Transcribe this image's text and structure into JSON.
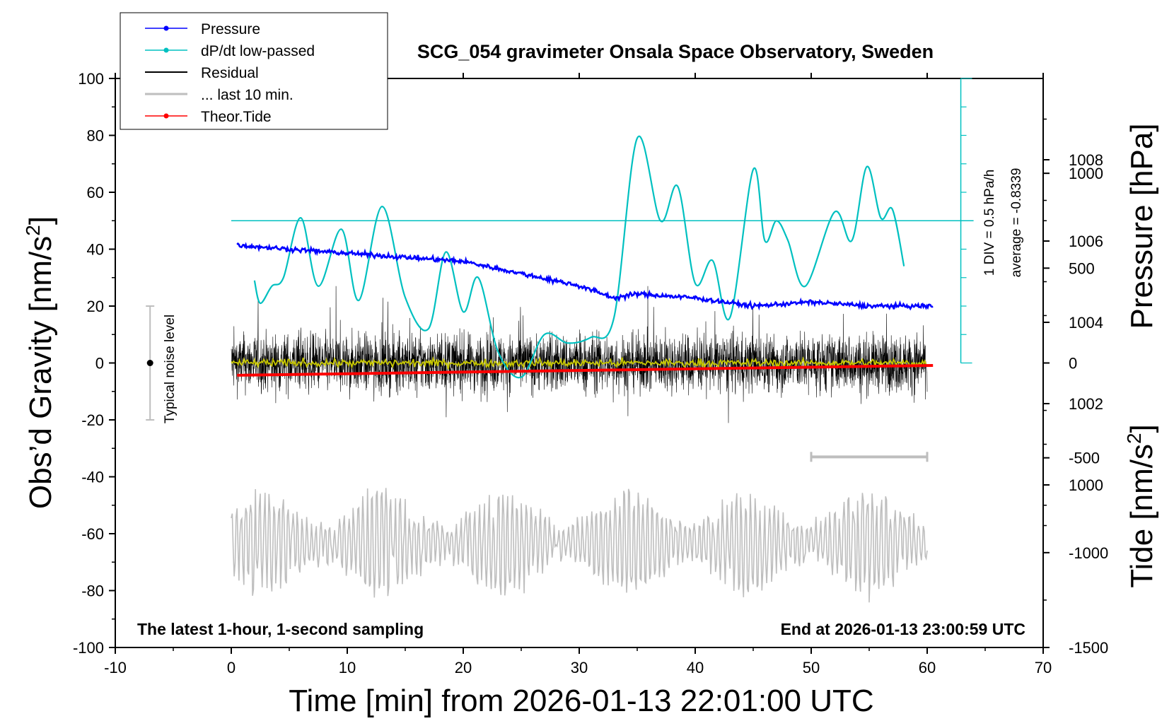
{
  "chart_data": {
    "type": "line",
    "title": "SCG_054 gravimeter Onsala Space Observatory, Sweden",
    "xlabel": "Time [min] from 2026-01-13 22:01:00 UTC",
    "ylabel_left": "Obs’d Gravity [nm/s²]",
    "ylabel_left_main": "Obs’d Gravity [nm/s",
    "ylabel_left_sup": "2",
    "ylabel_left_end": "]",
    "ylabel_pressure": "Pressure [hPa]",
    "ylabel_tide_main": "Tide [nm/s",
    "ylabel_tide_sup": "2",
    "ylabel_tide_end": "]",
    "xlim": [
      -10,
      70
    ],
    "ylim_left": [
      -100,
      100
    ],
    "ylim_pressure": [
      996,
      1010
    ],
    "ylim_tide": [
      -1500,
      1500
    ],
    "x_ticks": [
      -10,
      0,
      10,
      20,
      30,
      40,
      50,
      60,
      70
    ],
    "y_ticks_left": [
      -100,
      -80,
      -60,
      -40,
      -20,
      0,
      20,
      40,
      60,
      80,
      100
    ],
    "pressure_ticks": [
      1000,
      1002,
      1004,
      1006,
      1008
    ],
    "tide_ticks": [
      -1500,
      -1000,
      -500,
      0,
      500,
      1000
    ],
    "legend": {
      "position": "top-left",
      "entries": [
        {
          "label": "Pressure",
          "color": "#0000ff",
          "marker": true
        },
        {
          "label": "dP/dt low-passed",
          "color": "#00c0c0",
          "marker": true
        },
        {
          "label": "Residual",
          "color": "#000000",
          "marker": false
        },
        {
          "label": "... last 10 min.",
          "color": "#bebebe",
          "marker": false
        },
        {
          "label": "Theor.Tide",
          "color": "#ff0000",
          "marker": true
        }
      ]
    },
    "series": [
      {
        "name": "Pressure",
        "axis": "pressure_hPa",
        "color": "#0000ff",
        "x": [
          0.5,
          5,
          10,
          15,
          20,
          25,
          30,
          33,
          35,
          40,
          45,
          50,
          55,
          60.5
        ],
        "y": [
          1005.9,
          1005.8,
          1005.7,
          1005.6,
          1005.5,
          1005.2,
          1004.9,
          1004.6,
          1004.7,
          1004.6,
          1004.4,
          1004.5,
          1004.4,
          1004.4
        ]
      },
      {
        "name": "dP/dt low-passed",
        "axis": "left_nm_s2",
        "color": "#00c0c0",
        "x": [
          2,
          2.5,
          3.5,
          4.5,
          6,
          7.5,
          9.5,
          11,
          13,
          15,
          17,
          18.5,
          20,
          21.3,
          23,
          25,
          27,
          29,
          31,
          33,
          35,
          37,
          38.5,
          40,
          41.5,
          43,
          45,
          46,
          47,
          48,
          49.5,
          52,
          53.5,
          54.8,
          56,
          57,
          58
        ],
        "y": [
          29,
          21,
          27,
          30,
          51,
          27,
          47,
          22,
          55,
          23,
          12,
          39,
          18,
          30,
          4,
          -5,
          10,
          7,
          9,
          16,
          79,
          50,
          62,
          28,
          36,
          16,
          68,
          43,
          50,
          43,
          27,
          53,
          43,
          69,
          51,
          54,
          34
        ]
      },
      {
        "name": "Residual",
        "axis": "left_nm_s2",
        "color": "#000000",
        "xrange": [
          0,
          60
        ],
        "typical_amplitude": 20,
        "min": -30,
        "max": 27
      },
      {
        "name": "Residual (smoothed)",
        "axis": "left_nm_s2",
        "color": "#c8c800",
        "xrange": [
          0,
          60
        ],
        "typical_amplitude": 3
      },
      {
        "name": "... last 10 min.",
        "axis": "left_nm_s2",
        "color": "#bebebe",
        "xrange": [
          0,
          60
        ],
        "center": -63,
        "min": -86,
        "max": -35
      },
      {
        "name": "Theor.Tide",
        "axis": "tide_nm_s2",
        "color": "#ff0000",
        "x": [
          0.5,
          60.5
        ],
        "y": [
          -65,
          -13
        ]
      }
    ],
    "dpdt_reference": {
      "level": 50,
      "xrange": [
        0,
        64
      ],
      "scale_bar_x": 62.9,
      "scale_bar_range": [
        0,
        100
      ],
      "div_label": "1 DIV = 0.5 hPa/h",
      "average_label": "average = -0.8339"
    },
    "noise_bar": {
      "x": -7,
      "center": 0,
      "range": [
        -20,
        20
      ],
      "label": "Typical noise level"
    },
    "last10_bar": {
      "xrange": [
        50,
        60
      ],
      "y": -33
    },
    "annotations": {
      "left": "The latest 1-hour, 1-second sampling",
      "right": "End at 2026-01-13 23:00:59 UTC"
    },
    "grid": false
  }
}
